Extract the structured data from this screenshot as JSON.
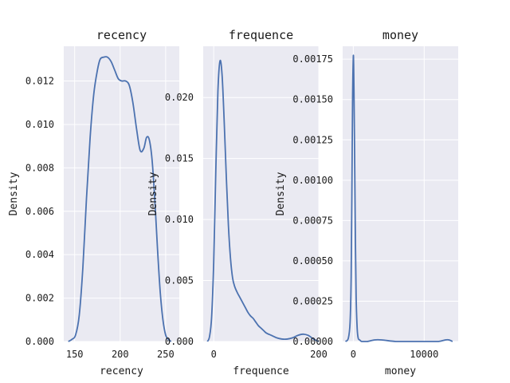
{
  "chart_data": [
    {
      "type": "area",
      "title": "recency",
      "xlabel": "recency",
      "ylabel": "Density",
      "xlim": [
        138,
        265
      ],
      "ylim": [
        0,
        0.0136
      ],
      "xticks": [
        150,
        200,
        250
      ],
      "yticks": [
        0.0,
        0.002,
        0.004,
        0.006,
        0.008,
        0.01,
        0.012
      ],
      "ytick_labels": [
        "0.000",
        "0.002",
        "0.004",
        "0.006",
        "0.008",
        "0.010",
        "0.012"
      ],
      "grid": true,
      "series": [
        {
          "x": [
            143,
            147,
            151,
            155,
            159,
            163,
            167,
            171,
            175,
            178,
            182,
            186,
            190,
            194,
            198,
            202,
            206,
            210,
            214,
            218,
            222,
            226,
            229,
            232,
            235,
            238,
            241,
            244,
            247,
            250,
            253,
            256
          ],
          "y": [
            0.0,
            0.0001,
            0.0003,
            0.0012,
            0.0034,
            0.0066,
            0.0094,
            0.0114,
            0.0125,
            0.013,
            0.0131,
            0.0131,
            0.0129,
            0.0125,
            0.0121,
            0.012,
            0.012,
            0.0118,
            0.011,
            0.0098,
            0.0088,
            0.0089,
            0.0094,
            0.0093,
            0.0084,
            0.0066,
            0.0043,
            0.0023,
            0.001,
            0.0003,
            0.0001,
            0.0
          ]
        }
      ]
    },
    {
      "type": "area",
      "title": "frequence",
      "xlabel": "frequence",
      "ylabel": "Density",
      "xlim": [
        -20,
        200
      ],
      "ylim": [
        0,
        0.0242
      ],
      "xticks": [
        0,
        200
      ],
      "yticks": [
        0.0,
        0.005,
        0.01,
        0.015,
        0.02
      ],
      "ytick_labels": [
        "0.000",
        "0.005",
        "0.010",
        "0.015",
        "0.020"
      ],
      "grid": true,
      "series": [
        {
          "x": [
            -12,
            -8,
            -4,
            0,
            4,
            8,
            12,
            16,
            20,
            24,
            28,
            32,
            36,
            40,
            45,
            50,
            55,
            60,
            65,
            70,
            75,
            80,
            85,
            90,
            95,
            100,
            110,
            120,
            130,
            140,
            150,
            160,
            170,
            180,
            190,
            200
          ],
          "y": [
            0.0,
            0.0004,
            0.002,
            0.0065,
            0.014,
            0.0205,
            0.023,
            0.0218,
            0.018,
            0.0135,
            0.0095,
            0.0068,
            0.0052,
            0.0045,
            0.004,
            0.0036,
            0.0032,
            0.0028,
            0.0024,
            0.0021,
            0.0019,
            0.0016,
            0.0013,
            0.0011,
            0.0009,
            0.0007,
            0.0005,
            0.0003,
            0.0002,
            0.0002,
            0.0003,
            0.0005,
            0.0006,
            0.0005,
            0.0002,
            0.0
          ]
        }
      ]
    },
    {
      "type": "area",
      "title": "money",
      "xlabel": "money",
      "ylabel": "Density",
      "xlim": [
        -1500,
        14800
      ],
      "ylim": [
        0,
        0.00183
      ],
      "xticks": [
        0,
        10000
      ],
      "yticks": [
        0.0,
        0.00025,
        0.0005,
        0.00075,
        0.001,
        0.00125,
        0.0015,
        0.00175
      ],
      "ytick_labels": [
        "0.00000",
        "0.00025",
        "0.00050",
        "0.00075",
        "0.00100",
        "0.00125",
        "0.00150",
        "0.00175"
      ],
      "grid": true,
      "series": [
        {
          "x": [
            -1100,
            -700,
            -450,
            -300,
            -200,
            -100,
            0,
            50,
            100,
            200,
            300,
            400,
            550,
            700,
            900,
            1200,
            2000,
            3000,
            4000,
            6000,
            8000,
            10000,
            12000,
            13000,
            13500,
            14000
          ],
          "y": [
            0.0,
            2e-05,
            0.00012,
            0.0004,
            0.0009,
            0.0015,
            0.00176,
            0.00172,
            0.00155,
            0.0011,
            0.00062,
            0.00028,
            8e-05,
            2e-05,
            1e-05,
            0.0,
            0.0,
            1e-05,
            1e-05,
            0.0,
            0.0,
            0.0,
            0.0,
            1e-05,
            1e-05,
            0.0
          ]
        }
      ]
    }
  ],
  "colors": {
    "line": "#4c72b0",
    "plot_bg": "#eaeaf2",
    "grid": "#ffffff"
  }
}
